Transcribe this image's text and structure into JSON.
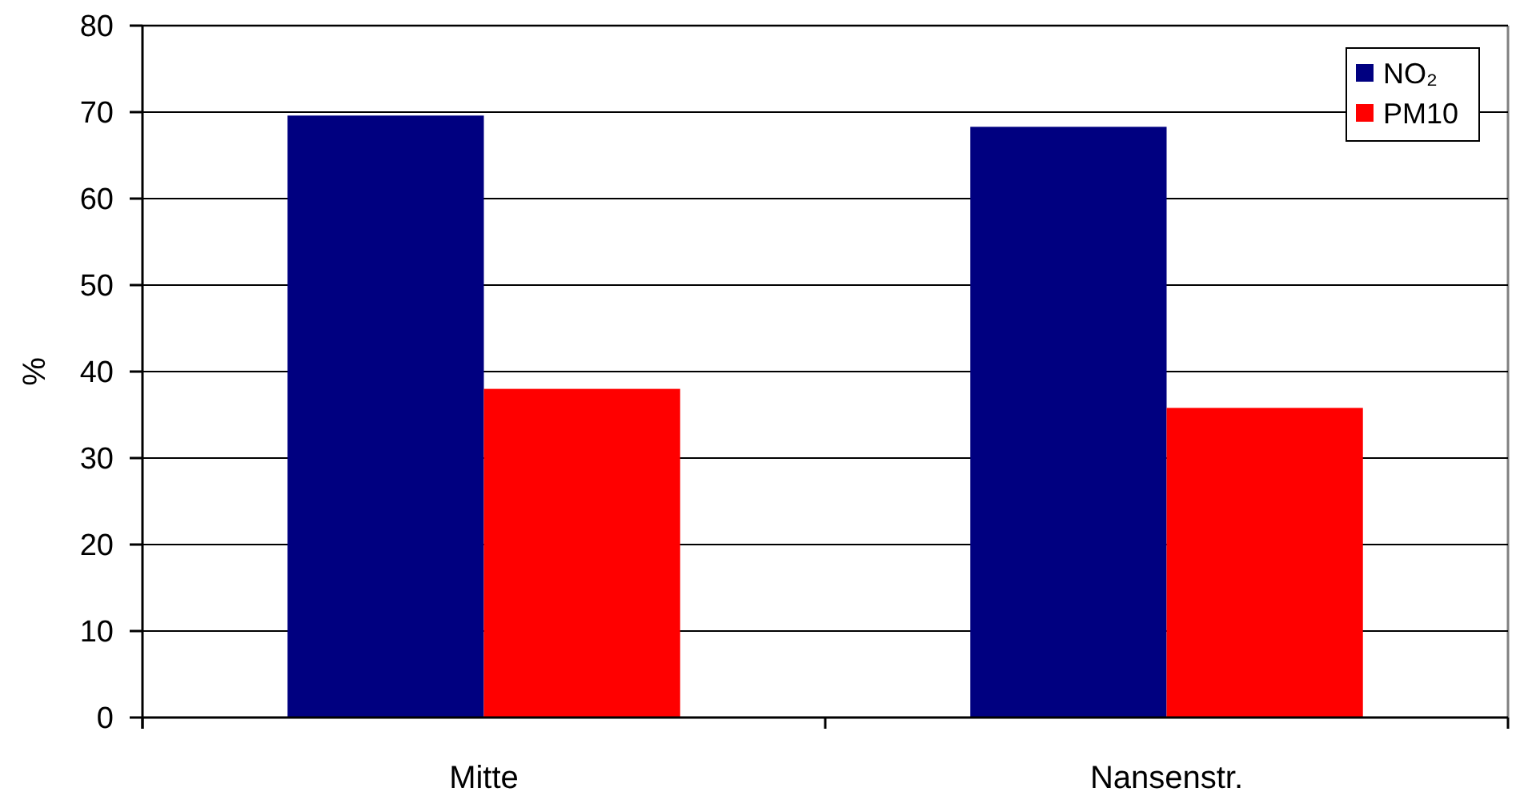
{
  "chart_data": {
    "type": "bar",
    "ylabel": "%",
    "categories": [
      "Mitte",
      "Nansenstr."
    ],
    "series": [
      {
        "name": "NO₂",
        "color": "#000080",
        "values": [
          69.6,
          68.3
        ]
      },
      {
        "name": "PM10",
        "color": "#ff0000",
        "values": [
          38.0,
          35.8
        ]
      }
    ],
    "ylim": [
      0,
      80
    ],
    "yticks": [
      0,
      10,
      20,
      30,
      40,
      50,
      60,
      70,
      80
    ],
    "grid": "y",
    "legend": "top right"
  }
}
